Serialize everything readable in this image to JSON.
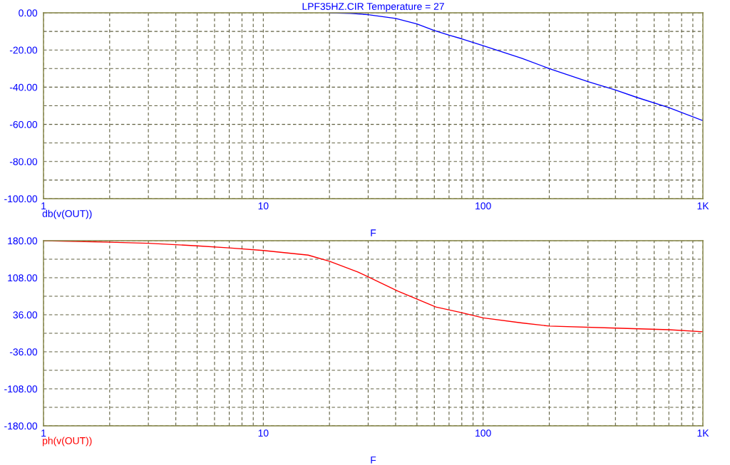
{
  "chart_data": [
    {
      "type": "line",
      "title": "LPF35HZ.CIR Temperature = 27",
      "xlabel": "F",
      "log": "x",
      "grid": true,
      "line_style": "solid",
      "xlim": [
        1,
        1000
      ],
      "xticks": [
        1,
        {
          "value": 2,
          "label": null
        },
        {
          "value": 3,
          "label": null
        },
        {
          "value": 4,
          "label": null
        },
        {
          "value": 5,
          "label": null
        },
        {
          "value": 6,
          "label": null
        },
        {
          "value": 7,
          "label": null
        },
        {
          "value": 8,
          "label": null
        },
        {
          "value": 9,
          "label": null
        },
        10,
        {
          "value": 20,
          "label": null
        },
        {
          "value": 30,
          "label": null
        },
        {
          "value": 40,
          "label": null
        },
        {
          "value": 50,
          "label": null
        },
        {
          "value": 60,
          "label": null
        },
        {
          "value": 70,
          "label": null
        },
        {
          "value": 80,
          "label": null
        },
        {
          "value": 90,
          "label": null
        },
        100,
        {
          "value": 200,
          "label": null
        },
        {
          "value": 300,
          "label": null
        },
        {
          "value": 400,
          "label": null
        },
        {
          "value": 500,
          "label": null
        },
        {
          "value": 600,
          "label": null
        },
        {
          "value": 700,
          "label": null
        },
        {
          "value": 800,
          "label": null
        },
        {
          "value": 900,
          "label": null
        },
        {
          "value": 1000,
          "label": "1K"
        }
      ],
      "ylim": [
        -100,
        0
      ],
      "yticks": [
        {
          "value": -100,
          "label": "-100.00"
        },
        {
          "value": -90,
          "label": null
        },
        {
          "value": -80,
          "label": "-80.00"
        },
        {
          "value": -70,
          "label": null
        },
        {
          "value": -60,
          "label": "-60.00"
        },
        {
          "value": -50,
          "label": null
        },
        {
          "value": -40,
          "label": "-40.00"
        },
        {
          "value": -30,
          "label": null
        },
        {
          "value": -20,
          "label": "-20.00"
        },
        {
          "value": -10,
          "label": null
        },
        {
          "value": 0,
          "label": "0.00"
        }
      ],
      "series": [
        {
          "name": "db(v(OUT))",
          "color": "#0000ff",
          "x": [
            20,
            25,
            30,
            40,
            50,
            60,
            70,
            80,
            100,
            150,
            200,
            300,
            400,
            500,
            700,
            1000
          ],
          "values": [
            0,
            -0.3,
            -1,
            -3,
            -6,
            -9.5,
            -12,
            -14,
            -17.7,
            -24.5,
            -30,
            -37,
            -41.5,
            -45.5,
            -51,
            -58
          ]
        }
      ]
    },
    {
      "type": "line",
      "xlabel": "F",
      "log": "x",
      "grid": true,
      "line_style": "solid",
      "xlim": [
        1,
        1000
      ],
      "xticks": [
        1,
        {
          "value": 2,
          "label": null
        },
        {
          "value": 3,
          "label": null
        },
        {
          "value": 4,
          "label": null
        },
        {
          "value": 5,
          "label": null
        },
        {
          "value": 6,
          "label": null
        },
        {
          "value": 7,
          "label": null
        },
        {
          "value": 8,
          "label": null
        },
        {
          "value": 9,
          "label": null
        },
        10,
        {
          "value": 20,
          "label": null
        },
        {
          "value": 30,
          "label": null
        },
        {
          "value": 40,
          "label": null
        },
        {
          "value": 50,
          "label": null
        },
        {
          "value": 60,
          "label": null
        },
        {
          "value": 70,
          "label": null
        },
        {
          "value": 80,
          "label": null
        },
        {
          "value": 90,
          "label": null
        },
        100,
        {
          "value": 200,
          "label": null
        },
        {
          "value": 300,
          "label": null
        },
        {
          "value": 400,
          "label": null
        },
        {
          "value": 500,
          "label": null
        },
        {
          "value": 600,
          "label": null
        },
        {
          "value": 700,
          "label": null
        },
        {
          "value": 800,
          "label": null
        },
        {
          "value": 900,
          "label": null
        },
        {
          "value": 1000,
          "label": "1K"
        }
      ],
      "ylim": [
        -180,
        180
      ],
      "yticks": [
        {
          "value": -180,
          "label": "-180.00"
        },
        {
          "value": -144,
          "label": null
        },
        {
          "value": -108,
          "label": "-108.00"
        },
        {
          "value": -72,
          "label": null
        },
        {
          "value": -36,
          "label": "-36.00"
        },
        {
          "value": 0,
          "label": null
        },
        {
          "value": 36,
          "label": "36.00"
        },
        {
          "value": 72,
          "label": null
        },
        {
          "value": 108,
          "label": "108.00"
        },
        {
          "value": 144,
          "label": null
        },
        {
          "value": 180,
          "label": "180.00"
        }
      ],
      "series": [
        {
          "name": "ph(v(OUT))",
          "color": "#ff0000",
          "x": [
            1,
            2,
            3,
            5,
            7,
            10,
            16,
            20,
            27,
            41,
            61,
            80,
            100,
            150,
            200,
            400,
            700,
            1000
          ],
          "values": [
            180,
            177,
            175,
            170,
            166,
            161,
            152,
            140,
            119,
            82,
            51,
            40,
            30,
            20,
            14,
            10,
            7,
            3
          ]
        }
      ]
    }
  ]
}
